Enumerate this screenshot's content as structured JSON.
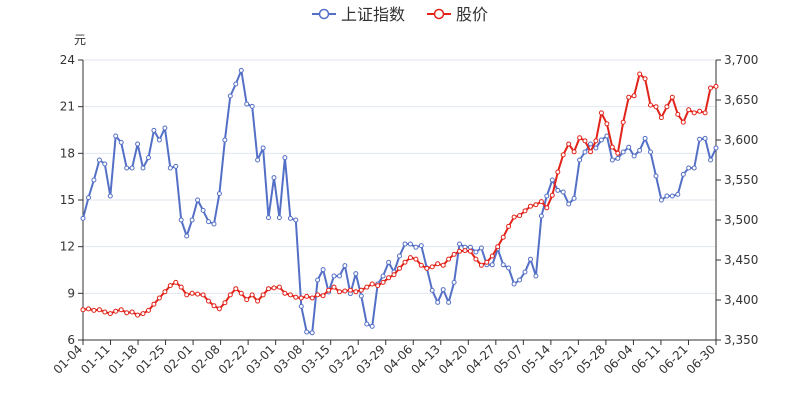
{
  "chart_data": {
    "type": "line",
    "legend": {
      "position": "top-center"
    },
    "y_left": {
      "unit": "元",
      "ticks": [
        "6",
        "9",
        "12",
        "15",
        "18",
        "21",
        "24"
      ],
      "range": [
        6,
        24
      ]
    },
    "y_right": {
      "ticks": [
        "3,350",
        "3,400",
        "3,450",
        "3,500",
        "3,550",
        "3,600",
        "3,650",
        "3,700"
      ],
      "range": [
        3350,
        3700
      ]
    },
    "x_ticks": [
      "01-04",
      "01-11",
      "01-18",
      "01-25",
      "02-01",
      "02-08",
      "02-22",
      "03-01",
      "03-08",
      "03-15",
      "03-22",
      "03-29",
      "04-06",
      "04-13",
      "04-20",
      "04-27",
      "05-07",
      "05-14",
      "05-21",
      "05-28",
      "06-04",
      "06-11",
      "06-21",
      "06-30"
    ],
    "grid": true,
    "series": [
      {
        "name": "上证指数",
        "color": "#5470c6",
        "axis": "right",
        "values": [
          3502,
          3528,
          3550,
          3575,
          3570,
          3530,
          3605,
          3597,
          3565,
          3565,
          3595,
          3565,
          3578,
          3612,
          3600,
          3615,
          3565,
          3567,
          3500,
          3480,
          3500,
          3525,
          3512,
          3498,
          3495,
          3533,
          3600,
          3655,
          3670,
          3687,
          3645,
          3642,
          3575,
          3590,
          3503,
          3553,
          3503,
          3578,
          3502,
          3500,
          3392,
          3360,
          3359,
          3425,
          3438,
          3410,
          3430,
          3430,
          3443,
          3408,
          3433,
          3405,
          3370,
          3367,
          3420,
          3430,
          3447,
          3435,
          3455,
          3470,
          3470,
          3466,
          3468,
          3440,
          3412,
          3397,
          3413,
          3397,
          3422,
          3470,
          3466,
          3466,
          3460,
          3465,
          3444,
          3444,
          3464,
          3444,
          3440,
          3420,
          3425,
          3435,
          3451,
          3430,
          3505,
          3530,
          3550,
          3537,
          3535,
          3520,
          3527,
          3575,
          3585,
          3595,
          3590,
          3600,
          3605,
          3575,
          3577,
          3585,
          3591,
          3580,
          3587,
          3602,
          3585,
          3555,
          3525,
          3530,
          3530,
          3532,
          3557,
          3565,
          3565,
          3601,
          3602,
          3575,
          3590
        ]
      },
      {
        "name": "股价",
        "color": "#e2231a",
        "values": [
          7.95,
          8.0,
          7.9,
          7.95,
          7.8,
          7.7,
          7.85,
          7.95,
          7.75,
          7.8,
          7.6,
          7.7,
          7.9,
          8.3,
          8.7,
          9.1,
          9.5,
          9.7,
          9.4,
          8.9,
          9.0,
          8.95,
          8.9,
          8.5,
          8.2,
          8.0,
          8.4,
          8.9,
          9.3,
          9.0,
          8.6,
          8.9,
          8.5,
          8.9,
          9.3,
          9.35,
          9.4,
          9.0,
          8.9,
          8.75,
          8.7,
          8.8,
          8.7,
          8.9,
          8.85,
          9.2,
          9.4,
          9.1,
          9.15,
          9.2,
          9.1,
          9.2,
          9.4,
          9.6,
          9.5,
          9.7,
          10.0,
          10.2,
          10.6,
          11.0,
          11.3,
          11.2,
          10.8,
          10.6,
          10.7,
          10.9,
          10.8,
          11.2,
          11.5,
          11.7,
          11.75,
          11.7,
          11.2,
          10.8,
          11.0,
          11.4,
          12.0,
          12.6,
          13.3,
          13.9,
          14.0,
          14.3,
          14.6,
          14.7,
          14.9,
          14.5,
          15.3,
          16.8,
          17.9,
          18.6,
          18.1,
          19.0,
          18.8,
          18.1,
          18.8,
          20.6,
          19.9,
          18.4,
          18.0,
          20.0,
          21.6,
          21.7,
          23.1,
          22.8,
          21.1,
          21.0,
          20.3,
          21.0,
          21.6,
          20.5,
          20.0,
          20.8,
          20.6,
          20.7,
          20.6,
          22.2,
          22.3
        ]
      }
    ]
  }
}
